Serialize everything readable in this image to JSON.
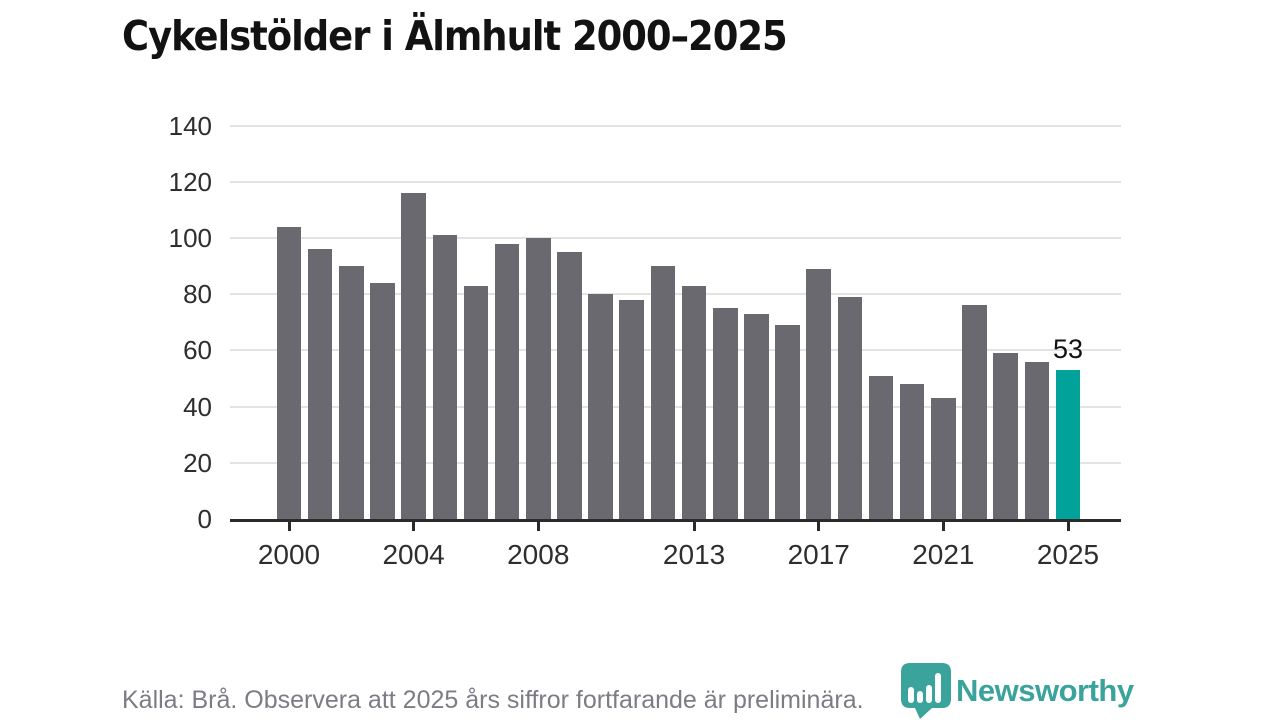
{
  "header": {
    "title": "Cykelstölder i Älmhult 2000–2025"
  },
  "chart_data": {
    "type": "bar",
    "title": "Cykelstölder i Älmhult 2000–2025",
    "categories": [
      2000,
      2001,
      2002,
      2003,
      2004,
      2005,
      2006,
      2007,
      2008,
      2009,
      2010,
      2011,
      2012,
      2013,
      2014,
      2015,
      2016,
      2017,
      2018,
      2019,
      2020,
      2021,
      2022,
      2023,
      2024,
      2025
    ],
    "values": [
      104,
      96,
      90,
      84,
      116,
      101,
      83,
      98,
      100,
      95,
      80,
      78,
      90,
      83,
      75,
      73,
      69,
      89,
      79,
      51,
      48,
      43,
      76,
      59,
      56,
      53
    ],
    "xlabel": "",
    "ylabel": "",
    "ylim": [
      0,
      140
    ],
    "yticks": [
      0,
      20,
      40,
      60,
      80,
      100,
      120,
      140
    ],
    "xticks": [
      2000,
      2004,
      2008,
      2013,
      2017,
      2021,
      2025
    ],
    "grid": "horizontal",
    "legend": "none",
    "bar_color": "#6a6970",
    "highlight": {
      "index": 25,
      "color": "#00a299",
      "label": "53"
    }
  },
  "footer": {
    "source_note": "Källa: Brå. Observera att 2025 års siffror fortfarande är preliminära.",
    "brand": {
      "name": "Newsworthy",
      "color": "#3aa39b",
      "icon": "newsworthy-pin-barchart-icon"
    }
  }
}
